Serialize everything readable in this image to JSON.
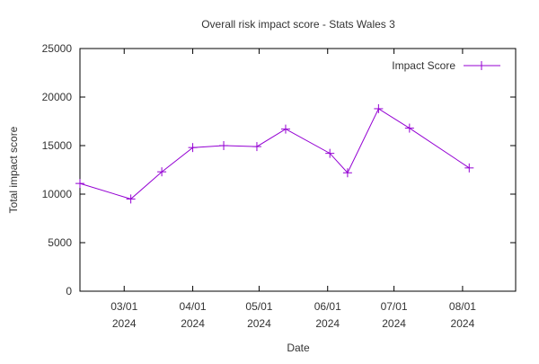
{
  "chart_data": {
    "type": "line",
    "title": "Overall risk impact score - Stats Wales 3",
    "xlabel": "Date",
    "ylabel": "Total impact score",
    "ylim": [
      0,
      25000
    ],
    "yticks": [
      0,
      5000,
      10000,
      15000,
      20000,
      25000
    ],
    "xlim": [
      "2024-02-10",
      "2024-08-25"
    ],
    "xticks": [
      {
        "date": "2024-03-01",
        "line1": "03/01",
        "line2": "2024"
      },
      {
        "date": "2024-04-01",
        "line1": "04/01",
        "line2": "2024"
      },
      {
        "date": "2024-05-01",
        "line1": "05/01",
        "line2": "2024"
      },
      {
        "date": "2024-06-01",
        "line1": "06/01",
        "line2": "2024"
      },
      {
        "date": "2024-07-01",
        "line1": "07/01",
        "line2": "2024"
      },
      {
        "date": "2024-08-01",
        "line1": "08/01",
        "line2": "2024"
      }
    ],
    "grid": false,
    "legend_position": "top-right",
    "series": [
      {
        "name": "Impact Score",
        "color": "#9400d3",
        "marker": "plus",
        "points": [
          {
            "x": "2024-02-10",
            "y": 11100
          },
          {
            "x": "2024-03-04",
            "y": 9500
          },
          {
            "x": "2024-03-18",
            "y": 12300
          },
          {
            "x": "2024-04-01",
            "y": 14800
          },
          {
            "x": "2024-04-15",
            "y": 15000
          },
          {
            "x": "2024-04-30",
            "y": 14900
          },
          {
            "x": "2024-05-13",
            "y": 16700
          },
          {
            "x": "2024-06-02",
            "y": 14200
          },
          {
            "x": "2024-06-10",
            "y": 12200
          },
          {
            "x": "2024-06-24",
            "y": 18800
          },
          {
            "x": "2024-07-08",
            "y": 16800
          },
          {
            "x": "2024-08-04",
            "y": 12700
          }
        ]
      }
    ]
  }
}
